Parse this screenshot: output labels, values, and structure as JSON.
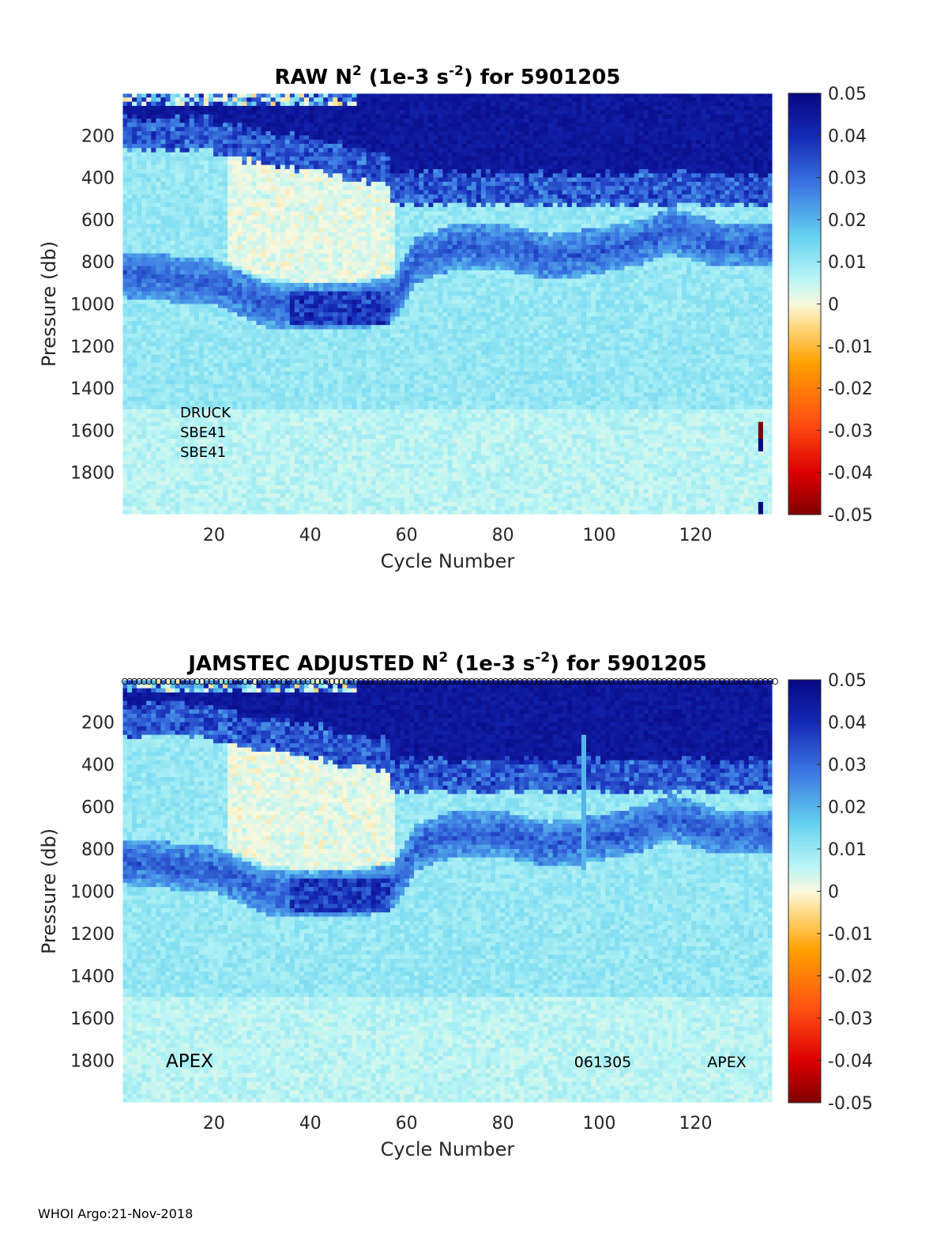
{
  "footer": "WHOI Argo:21-Nov-2018",
  "chart_data": [
    {
      "type": "heatmap",
      "title_parts": {
        "pre": "RAW N",
        "sup1": "2",
        "mid": " (1e-3 s",
        "sup2": "-2",
        "post": ") for 5901205"
      },
      "xlabel": "Cycle Number",
      "ylabel": "Pressure (db)",
      "xlim": [
        1,
        136
      ],
      "ylim": [
        0,
        2000
      ],
      "y_reversed": true,
      "xticks": [
        20,
        40,
        60,
        80,
        100,
        120
      ],
      "yticks": [
        200,
        400,
        600,
        800,
        1000,
        1200,
        1400,
        1600,
        1800
      ],
      "colorbar": {
        "range": [
          -0.05,
          0.05
        ],
        "ticks": [
          "0.05",
          "0.04",
          "0.03",
          "0.02",
          "0.01",
          "0",
          "-0.01",
          "-0.02",
          "-0.03",
          "-0.04",
          "-0.05"
        ]
      },
      "annotations": [
        "DRUCK",
        "SBE41",
        "SBE41"
      ],
      "features": {
        "surface_layer_value": 0.045,
        "thermocline_depth_by_cycle": [
          [
            1,
            860
          ],
          [
            20,
            900
          ],
          [
            30,
            1000
          ],
          [
            40,
            1020
          ],
          [
            50,
            1010
          ],
          [
            57,
            980
          ],
          [
            62,
            790
          ],
          [
            70,
            730
          ],
          [
            80,
            730
          ],
          [
            90,
            780
          ],
          [
            100,
            750
          ],
          [
            110,
            700
          ],
          [
            115,
            650
          ],
          [
            125,
            720
          ],
          [
            136,
            720
          ]
        ],
        "thermocline_value": 0.022,
        "background_value": 0.008,
        "anomaly_strip_cycle": 134,
        "anomaly_strip_values": [
          -0.05,
          0.05
        ]
      }
    },
    {
      "type": "heatmap",
      "title_parts": {
        "pre": "JAMSTEC  ADJUSTED N",
        "sup1": "2",
        "mid": " (1e-3 s",
        "sup2": "-2",
        "post": ") for 5901205"
      },
      "xlabel": "Cycle Number",
      "ylabel": "Pressure (db)",
      "xlim": [
        1,
        136
      ],
      "ylim": [
        0,
        2000
      ],
      "y_reversed": true,
      "xticks": [
        20,
        40,
        60,
        80,
        100,
        120
      ],
      "yticks": [
        200,
        400,
        600,
        800,
        1000,
        1200,
        1400,
        1600,
        1800
      ],
      "colorbar": {
        "range": [
          -0.05,
          0.05
        ],
        "ticks": [
          "0.05",
          "0.04",
          "0.03",
          "0.02",
          "0.01",
          "0",
          "-0.01",
          "-0.02",
          "-0.03",
          "-0.04",
          "-0.05"
        ]
      },
      "annotations": [
        "APEX",
        "061305",
        "APEX"
      ],
      "top_markers": "cycle circles along top edge",
      "features": {
        "surface_layer_value": 0.045,
        "thermocline_depth_by_cycle": [
          [
            1,
            860
          ],
          [
            20,
            900
          ],
          [
            30,
            1000
          ],
          [
            40,
            1020
          ],
          [
            50,
            1010
          ],
          [
            57,
            980
          ],
          [
            62,
            790
          ],
          [
            70,
            730
          ],
          [
            80,
            730
          ],
          [
            90,
            780
          ],
          [
            100,
            750
          ],
          [
            110,
            700
          ],
          [
            115,
            650
          ],
          [
            125,
            720
          ],
          [
            136,
            720
          ]
        ],
        "thermocline_value": 0.022,
        "background_value": 0.008,
        "vertical_streak_cycle": 97
      }
    }
  ]
}
